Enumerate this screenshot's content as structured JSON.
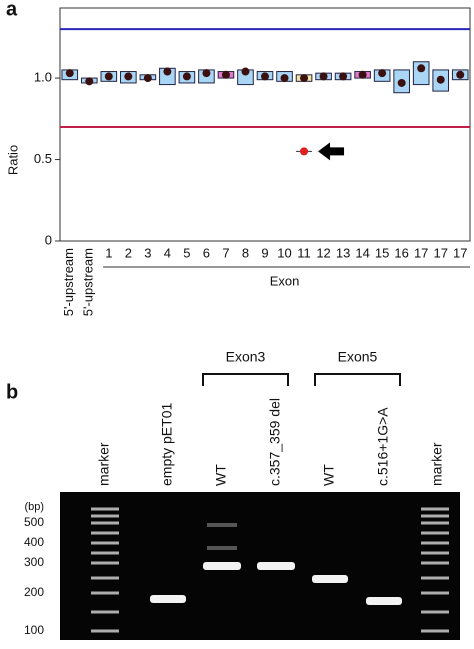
{
  "chart_data": {
    "type": "box",
    "panel_label": "a",
    "y_label": "Ratio",
    "x_label": "Exon",
    "categories": [
      "5'-upstream",
      "5'-upstream",
      "1",
      "2",
      "3",
      "4",
      "5",
      "6",
      "7",
      "8",
      "9",
      "10",
      "11",
      "12",
      "13",
      "14",
      "15",
      "16",
      "17",
      "17",
      "17"
    ],
    "values": [
      1.03,
      0.98,
      1.01,
      1.01,
      1.0,
      1.04,
      1.01,
      1.03,
      1.02,
      1.04,
      1.01,
      1.0,
      1.0,
      1.01,
      1.01,
      1.02,
      1.03,
      0.97,
      1.06,
      0.99,
      1.02
    ],
    "low": [
      0.99,
      0.97,
      0.98,
      0.97,
      0.99,
      0.96,
      0.97,
      0.97,
      1.0,
      0.96,
      0.99,
      0.98,
      0.98,
      0.99,
      0.99,
      1.0,
      0.98,
      0.91,
      0.96,
      0.92,
      0.99
    ],
    "high": [
      1.05,
      1.0,
      1.04,
      1.04,
      1.02,
      1.06,
      1.04,
      1.05,
      1.04,
      1.05,
      1.04,
      1.04,
      1.02,
      1.03,
      1.03,
      1.04,
      1.05,
      1.05,
      1.1,
      1.05,
      1.05
    ],
    "box_colors": [
      "#a9d6f5",
      "#a9d6f5",
      "#a9d6f5",
      "#a9d6f5",
      "#a9d6f5",
      "#a9d6f5",
      "#a9d6f5",
      "#a9d6f5",
      "#e07ad0",
      "#a9d6f5",
      "#a9d6f5",
      "#a9d6f5",
      "#f0e6a0",
      "#a9d6f5",
      "#a9d6f5",
      "#e07ad0",
      "#a9d6f5",
      "#a9d6f5",
      "#a9d6f5",
      "#a9d6f5",
      "#a9d6f5"
    ],
    "dot_color": "#3a1010",
    "outlier": {
      "category": 12,
      "value": 0.55,
      "color": "#e02020"
    },
    "reference_lines": [
      {
        "value": 1.3,
        "color": "#2828b8"
      },
      {
        "value": 0.7,
        "color": "#c0204a"
      }
    ],
    "ylim": [
      0,
      1.43
    ],
    "yticks": [
      0,
      0.5,
      {
        "value": 1,
        "label": "1.0"
      }
    ]
  },
  "panel_b": {
    "panel_label": "b",
    "lanes": [
      "marker",
      "empty pET01",
      "WT",
      "c.357_359 del",
      "WT",
      "c.516+1G>A",
      "marker"
    ],
    "groups": [
      "Exon3",
      "Exon5"
    ],
    "size_unit": "(bp)",
    "sizes": [
      500,
      400,
      300,
      200,
      100
    ]
  }
}
